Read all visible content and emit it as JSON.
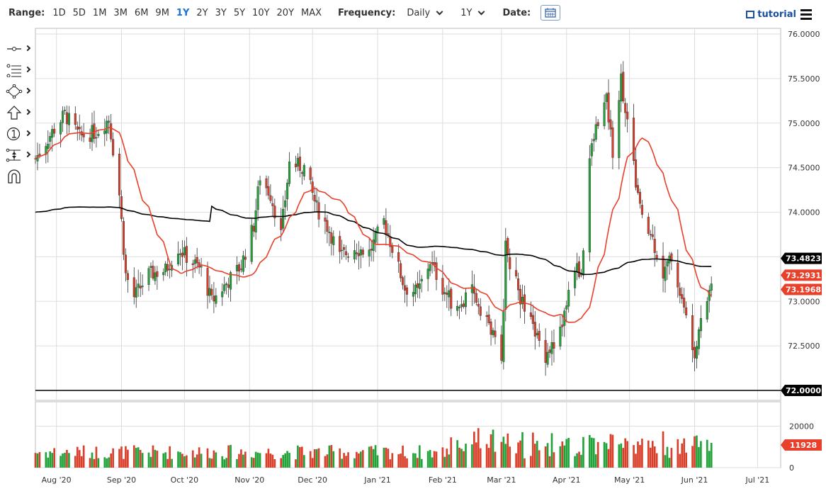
{
  "toolbar": {
    "range_label": "Range:",
    "ranges": [
      "1D",
      "5D",
      "1M",
      "3M",
      "6M",
      "9M",
      "1Y",
      "2Y",
      "3Y",
      "5Y",
      "10Y",
      "20Y",
      "MAX"
    ],
    "active_range": "1Y",
    "frequency_label": "Frequency:",
    "frequency_value": "Daily",
    "period_value": "1Y",
    "date_label": "Date:",
    "tutorial_label": "tutorial"
  },
  "left_tools": [
    "line-tool-icon",
    "fib-tool-icon",
    "shape-tool-icon",
    "arrow-tool-icon",
    "annotation-tool-icon",
    "measure-tool-icon",
    "magnet-icon"
  ],
  "colors": {
    "up": "#22a33a",
    "down": "#d9402b",
    "ma_fast": "#e8402a",
    "ma_slow": "#000000",
    "grid": "#dddddd",
    "volume_highlight": "#2c5fd9"
  },
  "chart_data": {
    "type": "candlestick",
    "price_axis": {
      "ylim": [
        72.0,
        76.0
      ],
      "ticks": [
        "76.0000",
        "75.5000",
        "75.0000",
        "74.5000",
        "74.0000",
        "73.5000",
        "73.0000",
        "72.5000",
        "72.0000"
      ]
    },
    "volume_axis": {
      "ylim": [
        0,
        30000
      ],
      "ticks": [
        "20000",
        "0"
      ]
    },
    "x_ticks": [
      "Aug '20",
      "Sep '20",
      "Oct '20",
      "Nov '20",
      "Dec '20",
      "Jan '21",
      "Feb '21",
      "Mar '21",
      "Apr '21",
      "May '21",
      "Jun '21",
      "Jul '21"
    ],
    "x_tick_dates": [
      "2020-08-01",
      "2020-09-01",
      "2020-10-01",
      "2020-11-01",
      "2020-12-01",
      "2021-01-01",
      "2021-02-01",
      "2021-03-01",
      "2021-04-01",
      "2021-05-01",
      "2021-06-01",
      "2021-07-01"
    ],
    "date_range": [
      "2020-07-22",
      "2021-06-09"
    ],
    "x_end": "2021-07-12",
    "price_anchors": [
      [
        "2020-07-22",
        74.6
      ],
      [
        "2020-07-30",
        74.9
      ],
      [
        "2020-08-05",
        75.1
      ],
      [
        "2020-08-12",
        74.85
      ],
      [
        "2020-08-20",
        74.9
      ],
      [
        "2020-08-26",
        75.05
      ],
      [
        "2020-08-31",
        74.2
      ],
      [
        "2020-09-03",
        73.3
      ],
      [
        "2020-09-07",
        73.05
      ],
      [
        "2020-09-14",
        73.3
      ],
      [
        "2020-09-22",
        73.35
      ],
      [
        "2020-09-28",
        73.6
      ],
      [
        "2020-10-02",
        73.5
      ],
      [
        "2020-10-09",
        73.35
      ],
      [
        "2020-10-14",
        73.0
      ],
      [
        "2020-10-21",
        73.2
      ],
      [
        "2020-10-28",
        73.4
      ],
      [
        "2020-11-03",
        73.85
      ],
      [
        "2020-11-06",
        74.4
      ],
      [
        "2020-11-11",
        74.2
      ],
      [
        "2020-11-16",
        73.75
      ],
      [
        "2020-11-20",
        74.55
      ],
      [
        "2020-11-27",
        74.5
      ],
      [
        "2020-12-03",
        74.05
      ],
      [
        "2020-12-09",
        73.8
      ],
      [
        "2020-12-14",
        73.5
      ],
      [
        "2020-12-21",
        73.6
      ],
      [
        "2020-12-28",
        73.55
      ],
      [
        "2021-01-04",
        73.9
      ],
      [
        "2021-01-08",
        73.6
      ],
      [
        "2021-01-14",
        73.15
      ],
      [
        "2021-01-20",
        73.1
      ],
      [
        "2021-01-26",
        73.45
      ],
      [
        "2021-02-01",
        73.15
      ],
      [
        "2021-02-08",
        72.9
      ],
      [
        "2021-02-15",
        73.1
      ],
      [
        "2021-02-22",
        72.8
      ],
      [
        "2021-03-01",
        72.35
      ],
      [
        "2021-03-03",
        73.6
      ],
      [
        "2021-03-08",
        73.2
      ],
      [
        "2021-03-12",
        72.9
      ],
      [
        "2021-03-18",
        72.6
      ],
      [
        "2021-03-22",
        72.4
      ],
      [
        "2021-03-29",
        72.65
      ],
      [
        "2021-04-05",
        73.4
      ],
      [
        "2021-04-08",
        73.3
      ],
      [
        "2021-04-12",
        74.6
      ],
      [
        "2021-04-16",
        75.05
      ],
      [
        "2021-04-20",
        75.25
      ],
      [
        "2021-04-23",
        74.7
      ],
      [
        "2021-04-27",
        75.5
      ],
      [
        "2021-05-03",
        74.5
      ],
      [
        "2021-05-07",
        73.9
      ],
      [
        "2021-05-12",
        73.7
      ],
      [
        "2021-05-17",
        73.3
      ],
      [
        "2021-05-21",
        73.5
      ],
      [
        "2021-05-27",
        72.9
      ],
      [
        "2021-06-01",
        72.45
      ],
      [
        "2021-06-04",
        72.85
      ],
      [
        "2021-06-07",
        73.05
      ],
      [
        "2021-06-09",
        73.2
      ]
    ],
    "last_price": 73.1968,
    "volume_last": 11928,
    "labels": [
      {
        "text": "73.4823",
        "series": "ma_slow"
      },
      {
        "text": "73.2931",
        "series": "ma_fast"
      },
      {
        "text": "73.1968",
        "series": "last_price"
      },
      {
        "text": "72.0000",
        "series": "horizontal_line"
      },
      {
        "text": "11928",
        "series": "volume_last"
      }
    ],
    "horizontal_line": 72.0,
    "ma_fast_period": 20,
    "ma_slow_period": 100,
    "grid": true
  }
}
